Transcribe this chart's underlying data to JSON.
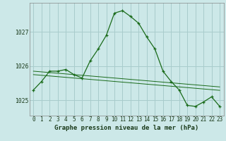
{
  "title": "Graphe pression niveau de la mer (hPa)",
  "bg_color": "#cce8e8",
  "grid_color": "#a8cccc",
  "line_color": "#1a6b1a",
  "x_labels": [
    "0",
    "1",
    "2",
    "3",
    "4",
    "5",
    "6",
    "7",
    "8",
    "9",
    "10",
    "11",
    "12",
    "13",
    "14",
    "15",
    "16",
    "17",
    "18",
    "19",
    "20",
    "21",
    "22",
    "23"
  ],
  "hours": [
    0,
    1,
    2,
    3,
    4,
    5,
    6,
    7,
    8,
    9,
    10,
    11,
    12,
    13,
    14,
    15,
    16,
    17,
    18,
    19,
    20,
    21,
    22,
    23
  ],
  "series_main": [
    1025.3,
    1025.55,
    1025.85,
    1025.85,
    1025.9,
    1025.75,
    1025.65,
    1026.15,
    1026.5,
    1026.9,
    1027.55,
    1027.62,
    1027.45,
    1027.25,
    1026.85,
    1026.5,
    1025.85,
    1025.55,
    1025.3,
    1024.85,
    1024.82,
    1024.95,
    1025.1,
    1024.82
  ],
  "series_min": [
    1025.75,
    1025.73,
    1025.71,
    1025.69,
    1025.67,
    1025.65,
    1025.63,
    1025.61,
    1025.59,
    1025.57,
    1025.55,
    1025.53,
    1025.51,
    1025.49,
    1025.47,
    1025.45,
    1025.43,
    1025.41,
    1025.39,
    1025.37,
    1025.35,
    1025.33,
    1025.31,
    1025.29
  ],
  "series_max": [
    1025.85,
    1025.83,
    1025.81,
    1025.79,
    1025.77,
    1025.75,
    1025.73,
    1025.71,
    1025.69,
    1025.67,
    1025.65,
    1025.63,
    1025.61,
    1025.59,
    1025.57,
    1025.55,
    1025.53,
    1025.51,
    1025.49,
    1025.47,
    1025.45,
    1025.43,
    1025.41,
    1025.39
  ],
  "ylim_min": 1024.55,
  "ylim_max": 1027.85,
  "yticks": [
    1025.0,
    1026.0,
    1027.0
  ],
  "title_fontsize": 7.0,
  "tick_fontsize": 5.8,
  "xlabel_fontsize": 6.5
}
